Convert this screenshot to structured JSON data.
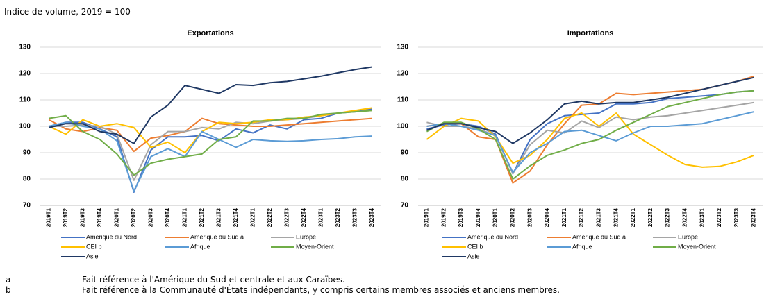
{
  "header": "Indice de volume, 2019 = 100",
  "chart_data": [
    {
      "type": "line",
      "title": "Exportations",
      "categories": [
        "2019T1",
        "2019T2",
        "2019T3",
        "2019T4",
        "2020T1",
        "2020T2",
        "2020T3",
        "2020T4",
        "2021T1",
        "2021T2",
        "2021T3",
        "2021T4",
        "2022T1",
        "2022T2",
        "2022T3",
        "2022T4",
        "2023T1",
        "2023T2",
        "2023T3",
        "2023T4"
      ],
      "ylim": [
        70,
        130
      ],
      "yticks": [
        70,
        80,
        90,
        100,
        110,
        120,
        130
      ],
      "grid": true,
      "series": [
        {
          "name": "Amérique du Nord",
          "color": "#4472c4",
          "values": [
            100,
            101.5,
            101.5,
            99,
            96,
            75,
            91,
            96,
            96,
            96.5,
            94.5,
            99,
            97.5,
            100.5,
            99,
            102.5,
            103,
            105,
            105.5,
            106.5
          ]
        },
        {
          "name": "Amérique du Sud a",
          "color": "#ed7d31",
          "values": [
            102.5,
            99,
            98,
            99.5,
            98.5,
            90.5,
            95.5,
            96.5,
            98,
            103,
            101,
            100.5,
            100,
            100,
            100.5,
            101,
            101.5,
            102,
            102.5,
            103
          ]
        },
        {
          "name": "Europe",
          "color": "#a5a5a5",
          "values": [
            100,
            100,
            100.5,
            100,
            97,
            79.5,
            93,
            98,
            98,
            99.5,
            99,
            101.5,
            101,
            102,
            102.5,
            103,
            104,
            105,
            105.5,
            106
          ]
        },
        {
          "name": "CEI b",
          "color": "#ffc000",
          "values": [
            100,
            97,
            102.5,
            100,
            101,
            99.5,
            92,
            94,
            90,
            98,
            101.5,
            101,
            101.5,
            102.5,
            102.5,
            103.5,
            104,
            105,
            106,
            107
          ]
        },
        {
          "name": "Afrique",
          "color": "#5b9bd5",
          "values": [
            100,
            101.5,
            100,
            99,
            94.5,
            75.5,
            88.5,
            91.5,
            88.5,
            98,
            95,
            92,
            95,
            94.5,
            94.3,
            94.5,
            95,
            95.3,
            96,
            96.3
          ]
        },
        {
          "name": "Moyen-Orient",
          "color": "#70ad47",
          "values": [
            103,
            104,
            98,
            95,
            89.5,
            81.5,
            86,
            87.5,
            88.5,
            89.5,
            95,
            96,
            102,
            102,
            103,
            103,
            104.5,
            105,
            105.5,
            106
          ]
        },
        {
          "name": "Asie",
          "color": "#1f3864",
          "values": [
            99.5,
            101,
            101,
            98,
            97,
            93.5,
            103.5,
            108,
            115.5,
            114,
            112.5,
            115.8,
            115.5,
            116.5,
            117,
            118,
            119,
            120.3,
            121.5,
            122.5
          ]
        }
      ]
    },
    {
      "type": "line",
      "title": "Importations",
      "categories": [
        "2019T1",
        "2019T2",
        "2019T3",
        "2019T4",
        "2020T1",
        "2020T2",
        "2020T3",
        "2020T4",
        "2021T1",
        "2021T2",
        "2021T3",
        "2021T4",
        "2022T1",
        "2022T2",
        "2022T3",
        "2022T4",
        "2023T1",
        "2023T2",
        "2023T3",
        "2023T4"
      ],
      "ylim": [
        70,
        130
      ],
      "yticks": [
        70,
        80,
        90,
        100,
        110,
        120,
        130
      ],
      "grid": true,
      "series": [
        {
          "name": "Amérique du Nord",
          "color": "#4472c4",
          "values": [
            99,
            100.5,
            101,
            100,
            97,
            82,
            95,
            101,
            104,
            104.5,
            105,
            108.5,
            108.5,
            109,
            110.5,
            111,
            111.5,
            112,
            113,
            113.5
          ]
        },
        {
          "name": "Amérique du Sud a",
          "color": "#ed7d31",
          "values": [
            100,
            101,
            101,
            96,
            95,
            78.5,
            83,
            93,
            101,
            108,
            108.5,
            112.5,
            112,
            112.5,
            113,
            113.5,
            114,
            115.5,
            117,
            119
          ]
        },
        {
          "name": "Europe",
          "color": "#a5a5a5",
          "values": [
            101.5,
            100,
            100,
            99,
            96.5,
            82,
            93,
            98.5,
            97.5,
            102,
            99.5,
            103.5,
            102.5,
            103.5,
            104,
            105,
            106,
            107,
            108,
            109
          ]
        },
        {
          "name": "CEI b",
          "color": "#ffc000",
          "values": [
            95,
            100,
            103,
            102,
            96,
            86,
            89,
            95,
            103,
            105,
            100,
            105,
            97,
            93,
            89,
            85.5,
            84.5,
            84.8,
            86.5,
            89
          ]
        },
        {
          "name": "Afrique",
          "color": "#5b9bd5",
          "values": [
            100,
            101,
            100,
            98.5,
            96.5,
            82.5,
            90,
            93.5,
            98,
            98.5,
            96.5,
            94.5,
            97.5,
            100,
            100,
            100.5,
            101,
            102.5,
            104,
            105.5
          ]
        },
        {
          "name": "Moyen-Orient",
          "color": "#70ad47",
          "values": [
            98,
            101.5,
            101.5,
            99,
            95,
            80,
            85,
            89,
            91,
            93.5,
            95,
            98.5,
            101.5,
            104.5,
            107.5,
            109,
            110.5,
            112,
            113,
            113.5
          ]
        },
        {
          "name": "Asie",
          "color": "#1f3864",
          "values": [
            98.5,
            101,
            101,
            99.5,
            98,
            93.5,
            97.5,
            102.5,
            108.5,
            109.5,
            108.5,
            109,
            109,
            110,
            111,
            112.5,
            114,
            115.5,
            117,
            118.5
          ]
        }
      ]
    }
  ],
  "footnotes": [
    {
      "marker": "a",
      "text": "Fait référence à l'Amérique du Sud et centrale et aux Caraïbes."
    },
    {
      "marker": "b",
      "text": "Fait référence à la Communauté d'États indépendants, y compris certains membres associés et anciens membres."
    }
  ]
}
